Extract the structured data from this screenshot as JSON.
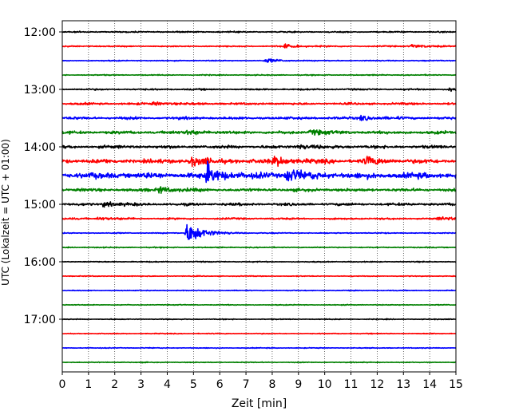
{
  "chart_data": {
    "type": "line",
    "title": "",
    "xlabel": "Zeit  [min]",
    "ylabel": "UTC (Lokalzeit = UTC + 01:00)",
    "xlim": [
      0,
      15
    ],
    "x_ticks": [
      "0",
      "1",
      "2",
      "3",
      "4",
      "5",
      "6",
      "7",
      "8",
      "9",
      "10",
      "11",
      "12",
      "13",
      "14",
      "15"
    ],
    "y_ticks": [
      {
        "label": "12:00",
        "row": 0
      },
      {
        "label": "13:00",
        "row": 4
      },
      {
        "label": "14:00",
        "row": 8
      },
      {
        "label": "15:00",
        "row": 12
      },
      {
        "label": "16:00",
        "row": 16
      },
      {
        "label": "17:00",
        "row": 20
      }
    ],
    "grid": {
      "x": true,
      "style": "dotted"
    },
    "trace_interval_min": 15,
    "trace_colors": [
      "#000000",
      "#ff0000",
      "#0000ff",
      "#008000"
    ],
    "series": [
      {
        "start": "12:00",
        "color": "#000000",
        "amplitude": 0.15,
        "events": []
      },
      {
        "start": "12:15",
        "color": "#ff0000",
        "amplitude": 0.15,
        "events": [
          {
            "t": 8.5,
            "amp": 0.5
          },
          {
            "t": 13.3,
            "amp": 0.5
          }
        ]
      },
      {
        "start": "12:30",
        "color": "#0000ff",
        "amplitude": 0.12,
        "events": [
          {
            "t": 7.8,
            "amp": 0.5
          }
        ]
      },
      {
        "start": "12:45",
        "color": "#008000",
        "amplitude": 0.12,
        "events": []
      },
      {
        "start": "13:00",
        "color": "#000000",
        "amplitude": 0.18,
        "events": [
          {
            "t": 14.8,
            "amp": 0.5
          }
        ]
      },
      {
        "start": "13:15",
        "color": "#ff0000",
        "amplitude": 0.25,
        "events": [
          {
            "t": 3.5,
            "amp": 0.4
          }
        ]
      },
      {
        "start": "13:30",
        "color": "#0000ff",
        "amplitude": 0.3,
        "events": [
          {
            "t": 11.4,
            "amp": 0.6
          }
        ]
      },
      {
        "start": "13:45",
        "color": "#008000",
        "amplitude": 0.35,
        "events": [
          {
            "t": 4.8,
            "amp": 0.6
          },
          {
            "t": 9.5,
            "amp": 0.7
          }
        ]
      },
      {
        "start": "14:00",
        "color": "#000000",
        "amplitude": 0.35,
        "events": [
          {
            "t": 9.0,
            "amp": 0.6
          }
        ]
      },
      {
        "start": "14:15",
        "color": "#ff0000",
        "amplitude": 0.5,
        "events": [
          {
            "t": 4.9,
            "amp": 1.2
          },
          {
            "t": 8.1,
            "amp": 1.2
          },
          {
            "t": 11.6,
            "amp": 1.0
          }
        ]
      },
      {
        "start": "14:30",
        "color": "#0000ff",
        "amplitude": 0.7,
        "events": [
          {
            "t": 5.5,
            "amp": 2.5
          },
          {
            "t": 8.6,
            "amp": 1.8
          }
        ]
      },
      {
        "start": "14:45",
        "color": "#008000",
        "amplitude": 0.35,
        "events": [
          {
            "t": 3.7,
            "amp": 0.9
          }
        ]
      },
      {
        "start": "15:00",
        "color": "#000000",
        "amplitude": 0.3,
        "events": [
          {
            "t": 1.6,
            "amp": 0.6
          }
        ]
      },
      {
        "start": "15:15",
        "color": "#ff0000",
        "amplitude": 0.2,
        "events": [
          {
            "t": 1.4,
            "amp": 0.4
          },
          {
            "t": 14.4,
            "amp": 0.4
          }
        ]
      },
      {
        "start": "15:30",
        "color": "#0000ff",
        "amplitude": 0.12,
        "events": [
          {
            "t": 4.8,
            "amp": 3.5
          }
        ]
      },
      {
        "start": "15:45",
        "color": "#008000",
        "amplitude": 0.12,
        "events": []
      },
      {
        "start": "16:00",
        "color": "#000000",
        "amplitude": 0.12,
        "events": []
      },
      {
        "start": "16:15",
        "color": "#ff0000",
        "amplitude": 0.1,
        "events": []
      },
      {
        "start": "16:30",
        "color": "#0000ff",
        "amplitude": 0.1,
        "events": []
      },
      {
        "start": "16:45",
        "color": "#008000",
        "amplitude": 0.1,
        "events": []
      },
      {
        "start": "17:00",
        "color": "#000000",
        "amplitude": 0.1,
        "events": []
      },
      {
        "start": "17:15",
        "color": "#ff0000",
        "amplitude": 0.1,
        "events": []
      },
      {
        "start": "17:30",
        "color": "#0000ff",
        "amplitude": 0.1,
        "events": []
      },
      {
        "start": "17:45",
        "color": "#008000",
        "amplitude": 0.1,
        "events": []
      }
    ]
  }
}
